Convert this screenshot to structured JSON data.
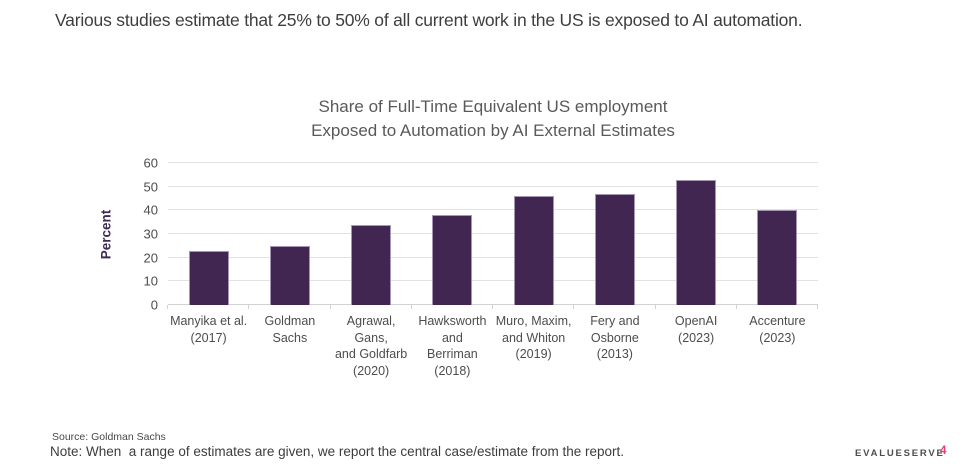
{
  "header": {
    "title": "Various studies estimate that 25% to 50% of all current work in the US is exposed to AI automation."
  },
  "chart_data": {
    "type": "bar",
    "title": "Share of Full-Time Equivalent US employment Exposed to Automation by AI External Estimates",
    "title_lines": [
      "Share of Full-Time Equivalent US employment",
      "Exposed to Automation by AI External Estimates"
    ],
    "xlabel": "",
    "ylabel": "Percent",
    "ylim": [
      0,
      60
    ],
    "yticks": [
      0,
      10,
      20,
      30,
      40,
      50,
      60
    ],
    "grid": true,
    "legend": false,
    "bar_color": "#412652",
    "bar_border_color": "#A695B5",
    "categories": [
      [
        "Manyika et al.",
        "(2017)"
      ],
      [
        "Goldman",
        "Sachs"
      ],
      [
        "Agrawal, Gans,",
        "and Goldfarb",
        "(2020)"
      ],
      [
        "Hawksworth",
        "and",
        "Berriman",
        "(2018)"
      ],
      [
        "Muro, Maxim,",
        "and Whiton",
        "(2019)"
      ],
      [
        "Fery and",
        "Osborne",
        "(2013)"
      ],
      [
        "OpenAI",
        "(2023)"
      ],
      [
        "Accenture",
        "(2023)"
      ]
    ],
    "values": [
      23,
      25,
      34,
      38,
      46,
      47,
      53,
      40
    ]
  },
  "footer": {
    "source": "Source: Goldman Sachs",
    "note": "Note: When  a range of estimates are given, we report the central case/estimate from the report.",
    "brand": "EVALUESERVE",
    "page_number": "4"
  },
  "colors": {
    "accent_purple": "#412652",
    "ylabel_purple": "#3F2A56",
    "page_number_pink": "#EB3C6E",
    "gridline": "#E2E2E2",
    "axis_line": "#D2D2D2",
    "headline_text": "#3E3E3E",
    "chart_title_text": "#595959",
    "tick_text": "#4D4D4D"
  }
}
